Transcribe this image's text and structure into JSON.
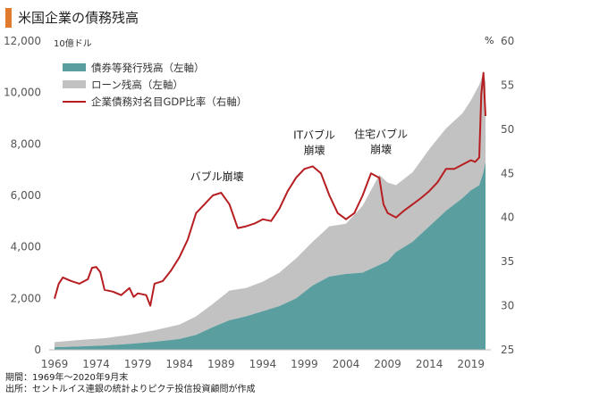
{
  "header": {
    "title": "米国企業の債務残高",
    "accent_color": "#e07b2e"
  },
  "footnotes": {
    "period": "期間：1969年～2020年9月末",
    "source": "出所：セントルイス連銀の統計よりピクテ投信投資顧問が作成"
  },
  "chart_data": {
    "type": "area",
    "title": "米国企業の債務残高",
    "left_axis": {
      "unit": "10億ドル",
      "ylim": [
        0,
        12000
      ],
      "ticks": [
        "0",
        "2,000",
        "4,000",
        "6,000",
        "8,000",
        "10,000",
        "12,000"
      ]
    },
    "right_axis": {
      "unit": "%",
      "ylim": [
        25,
        60
      ],
      "ticks": [
        "25",
        "30",
        "35",
        "40",
        "45",
        "50",
        "55",
        "60"
      ]
    },
    "x_ticks": [
      "1969",
      "1974",
      "1979",
      "1984",
      "1989",
      "1994",
      "1999",
      "2004",
      "2009",
      "2014",
      "2019"
    ],
    "legend_position": "top-left",
    "grid": false,
    "series": [
      {
        "name": "債券等発行残高（左軸）",
        "axis": "left",
        "kind": "area",
        "color": "#5b9ea0",
        "x": [
          1969,
          1972,
          1975,
          1978,
          1981,
          1984,
          1986,
          1988,
          1990,
          1992,
          1994,
          1996,
          1998,
          2000,
          2002,
          2004,
          2006,
          2008,
          2009,
          2010,
          2012,
          2014,
          2016,
          2018,
          2019,
          2020,
          2020.5,
          2020.75
        ],
        "values": [
          100,
          130,
          170,
          230,
          310,
          420,
          580,
          880,
          1150,
          1300,
          1500,
          1700,
          2000,
          2500,
          2850,
          2950,
          3000,
          3300,
          3450,
          3800,
          4200,
          4800,
          5400,
          5900,
          6200,
          6400,
          6900,
          7300
        ]
      },
      {
        "name": "ローン残高（左軸）",
        "axis": "left",
        "kind": "stacked-area",
        "color": "#c2c2c2",
        "x": [
          1969,
          1972,
          1975,
          1978,
          1981,
          1984,
          1986,
          1988,
          1990,
          1992,
          1994,
          1996,
          1998,
          2000,
          2002,
          2004,
          2006,
          2008,
          2009,
          2010,
          2012,
          2014,
          2016,
          2018,
          2019,
          2020,
          2020.5,
          2020.75
        ],
        "values": [
          200,
          250,
          280,
          350,
          450,
          560,
          720,
          900,
          1150,
          1100,
          1150,
          1300,
          1550,
          1700,
          1950,
          1950,
          2600,
          3500,
          3050,
          2600,
          2700,
          3000,
          3200,
          3300,
          3500,
          3900,
          3850,
          3100
        ]
      },
      {
        "name": "企業債務対名目GDP比率（右軸）",
        "axis": "right",
        "kind": "line",
        "color": "#b61e22",
        "x": [
          1969,
          1969.5,
          1970,
          1971,
          1972,
          1973,
          1973.5,
          1974,
          1974.5,
          1975,
          1976,
          1977,
          1978,
          1978.5,
          1979,
          1980,
          1980.5,
          1981,
          1982,
          1983,
          1984,
          1985,
          1986,
          1987,
          1988,
          1989,
          1990,
          1991,
          1992,
          1993,
          1994,
          1995,
          1996,
          1997,
          1998,
          1999,
          2000,
          2001,
          2002,
          2003,
          2004,
          2005,
          2006,
          2007,
          2008,
          2008.5,
          2009,
          2010,
          2011,
          2012,
          2013,
          2014,
          2015,
          2016,
          2017,
          2018,
          2019,
          2019.5,
          2020,
          2020.25,
          2020.5,
          2020.75
        ],
        "values": [
          30.8,
          32.5,
          33.2,
          32.8,
          32.5,
          33.0,
          34.3,
          34.4,
          33.8,
          31.8,
          31.6,
          31.2,
          32.0,
          31.0,
          31.4,
          31.2,
          30.0,
          32.5,
          32.8,
          34.0,
          35.5,
          37.5,
          40.5,
          41.5,
          42.5,
          42.8,
          41.5,
          38.8,
          39.0,
          39.3,
          39.8,
          39.6,
          41.0,
          43.0,
          44.5,
          45.5,
          45.8,
          45.0,
          42.5,
          40.5,
          39.8,
          40.5,
          42.5,
          45.0,
          44.5,
          41.5,
          40.5,
          40.0,
          40.8,
          41.5,
          42.2,
          43.0,
          44.0,
          45.5,
          45.5,
          46.0,
          46.5,
          46.3,
          46.8,
          54.0,
          56.4,
          51.5
        ]
      }
    ],
    "annotations": [
      {
        "text": "バブル崩壊",
        "x": 1988.5,
        "y": 44.2,
        "axis": "right"
      },
      {
        "text": "ITバブル",
        "x": 2000.2,
        "y": 48.9,
        "axis": "right"
      },
      {
        "text": "崩壊",
        "x": 2000.2,
        "y": 47.2,
        "axis": "right"
      },
      {
        "text": "住宅バブル",
        "x": 2008.2,
        "y": 49.0,
        "axis": "right"
      },
      {
        "text": "崩壊",
        "x": 2008.2,
        "y": 47.3,
        "axis": "right"
      }
    ]
  }
}
